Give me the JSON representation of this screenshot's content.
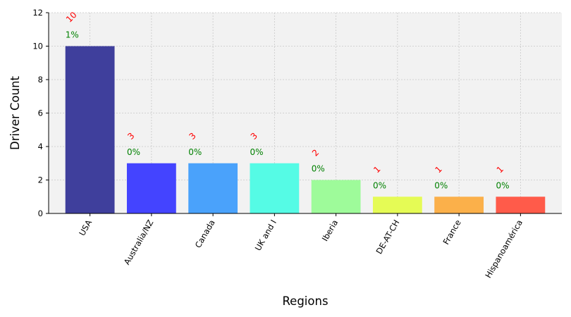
{
  "chart_data": {
    "type": "bar",
    "xlabel": "Regions",
    "ylabel": "Driver Count",
    "categories": [
      "USA",
      "Australia/NZ",
      "Canada",
      "UK and I",
      "Iberia",
      "DE-AT-CH",
      "France",
      "Hispanoamérica"
    ],
    "values": [
      10,
      3,
      3,
      3,
      2,
      1,
      1,
      1
    ],
    "count_labels": [
      "10",
      "3",
      "3",
      "3",
      "2",
      "1",
      "1",
      "1"
    ],
    "percent_labels": [
      "1%",
      "0%",
      "0%",
      "0%",
      "0%",
      "0%",
      "0%",
      "0%"
    ],
    "bar_colors": [
      "#3f3f9c",
      "#4444ff",
      "#4aa2fb",
      "#55fbe5",
      "#9efb9a",
      "#e5fb55",
      "#fbb04a",
      "#ff5b4a"
    ],
    "ylim": [
      0,
      12
    ],
    "yticks": [
      "0",
      "2",
      "4",
      "6",
      "8",
      "10",
      "12"
    ],
    "grid": true,
    "count_label_color": "#ff0000",
    "percent_label_color": "#008000",
    "plot_background": "#f2f2f2"
  }
}
